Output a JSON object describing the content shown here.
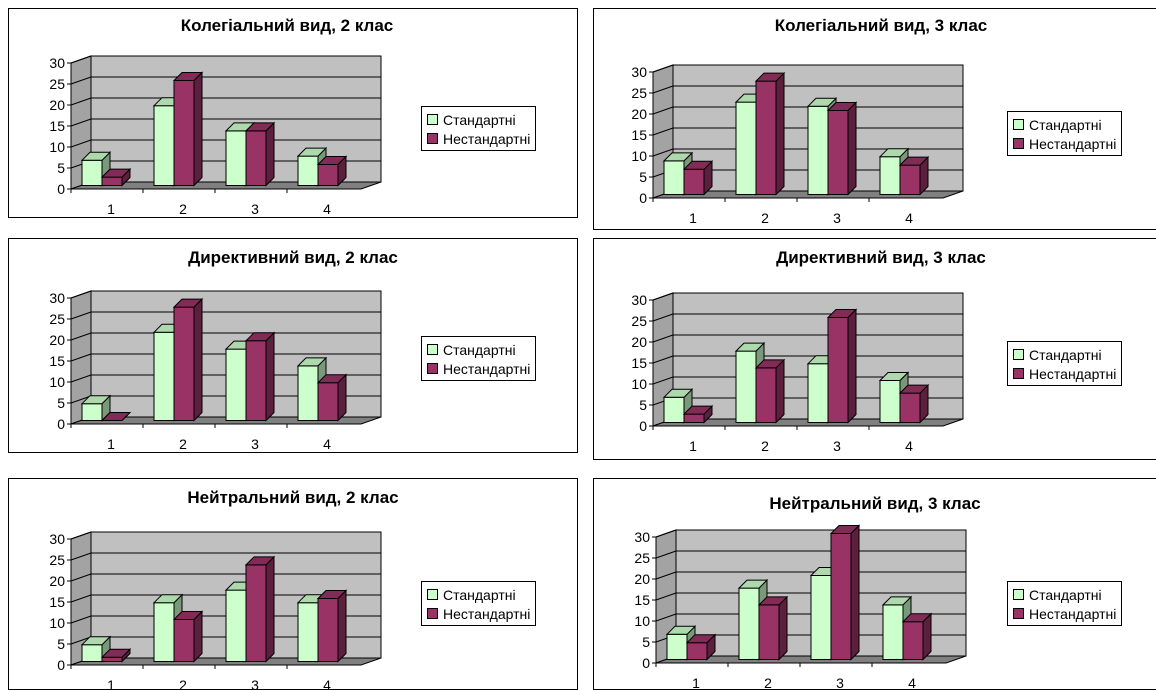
{
  "colors": {
    "standard": "#ccffcc",
    "nonstandard": "#993366",
    "wall": "#c0c0c0",
    "floor": "#808080"
  },
  "chart_data": [
    {
      "type": "bar",
      "title": "Колегіальний вид, 2 клас",
      "categories": [
        "1",
        "2",
        "3",
        "4"
      ],
      "series": [
        {
          "name": "Стандартні",
          "values": [
            6,
            19,
            13,
            7
          ]
        },
        {
          "name": "Нестандартні",
          "values": [
            2,
            25,
            13,
            5
          ]
        }
      ],
      "yticks": [
        "0",
        "5",
        "10",
        "15",
        "20",
        "25",
        "30"
      ],
      "ylim": [
        0,
        30
      ],
      "grid": true,
      "legend": "right"
    },
    {
      "type": "bar",
      "title": "Колегіальний вид, 3 клас",
      "categories": [
        "1",
        "2",
        "3",
        "4"
      ],
      "series": [
        {
          "name": "Стандартні",
          "values": [
            8,
            22,
            21,
            9
          ]
        },
        {
          "name": "Нестандартні",
          "values": [
            6,
            27,
            20,
            7
          ]
        }
      ],
      "yticks": [
        "0",
        "5",
        "10",
        "15",
        "20",
        "25",
        "30"
      ],
      "ylim": [
        0,
        30
      ],
      "grid": true,
      "legend": "right"
    },
    {
      "type": "bar",
      "title": "Директивний вид, 2 клас",
      "categories": [
        "1",
        "2",
        "3",
        "4"
      ],
      "series": [
        {
          "name": "Стандартні",
          "values": [
            4,
            21,
            17,
            13
          ]
        },
        {
          "name": "Нестандартні",
          "values": [
            0,
            27,
            19,
            9
          ]
        }
      ],
      "yticks": [
        "0",
        "5",
        "10",
        "15",
        "20",
        "25",
        "30"
      ],
      "ylim": [
        0,
        30
      ],
      "grid": true,
      "legend": "right"
    },
    {
      "type": "bar",
      "title": "Директивний вид, 3 клас",
      "categories": [
        "1",
        "2",
        "3",
        "4"
      ],
      "series": [
        {
          "name": "Стандартні",
          "values": [
            6,
            17,
            14,
            10
          ]
        },
        {
          "name": "Нестандартні",
          "values": [
            2,
            13,
            25,
            7
          ]
        }
      ],
      "yticks": [
        "0",
        "5",
        "10",
        "15",
        "20",
        "25",
        "30"
      ],
      "ylim": [
        0,
        30
      ],
      "grid": true,
      "legend": "right"
    },
    {
      "type": "bar",
      "title": "Нейтральний вид, 2 клас",
      "categories": [
        "1",
        "2",
        "3",
        "4"
      ],
      "series": [
        {
          "name": "Стандартні",
          "values": [
            4,
            14,
            17,
            14
          ]
        },
        {
          "name": "Нестандартні",
          "values": [
            1,
            10,
            23,
            15
          ]
        }
      ],
      "yticks": [
        "0",
        "5",
        "10",
        "15",
        "20",
        "25",
        "30"
      ],
      "ylim": [
        0,
        30
      ],
      "grid": true,
      "legend": "right"
    },
    {
      "type": "bar",
      "title": "Нейтральний вид, 3 клас",
      "categories": [
        "1",
        "2",
        "3",
        "4"
      ],
      "series": [
        {
          "name": "Стандартні",
          "values": [
            6,
            17,
            20,
            13
          ]
        },
        {
          "name": "Нестандартні",
          "values": [
            4,
            13,
            30,
            9
          ]
        }
      ],
      "yticks": [
        "0",
        "5",
        "10",
        "15",
        "20",
        "25",
        "30"
      ],
      "ylim": [
        0,
        30
      ],
      "grid": true,
      "legend": "right"
    }
  ]
}
